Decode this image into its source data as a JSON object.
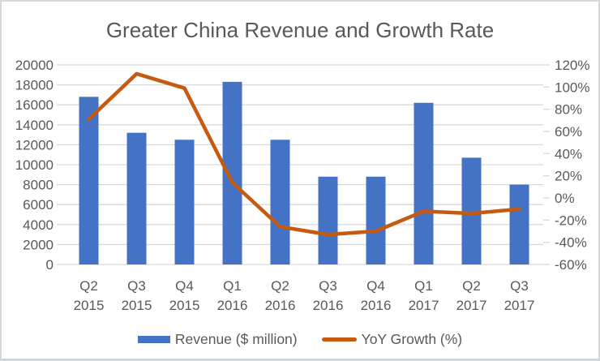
{
  "title": "Greater China Revenue and Growth Rate",
  "legend": {
    "revenue": {
      "label": "Revenue ($ million)",
      "color": "#4472C4"
    },
    "growth": {
      "label": "YoY Growth (%)",
      "color": "#C55A11"
    }
  },
  "chart_data": {
    "type": "bar",
    "combo": "bar + line, dual axis",
    "title": "Greater China Revenue and Growth Rate",
    "categories": [
      "Q2 2015",
      "Q3 2015",
      "Q4 2015",
      "Q1 2016",
      "Q2 2016",
      "Q3 2016",
      "Q4 2016",
      "Q1 2017",
      "Q2 2017",
      "Q3 2017"
    ],
    "series": [
      {
        "name": "Revenue ($ million)",
        "type": "bar",
        "axis": "left",
        "color": "#4472C4",
        "values": [
          16800,
          13200,
          12500,
          18300,
          12500,
          8800,
          8800,
          16200,
          10700,
          8000
        ]
      },
      {
        "name": "YoY Growth (%)",
        "type": "line",
        "axis": "right",
        "color": "#C55A11",
        "values": [
          71,
          112,
          99,
          14,
          -26,
          -33,
          -30,
          -12,
          -14,
          -10
        ]
      }
    ],
    "left_axis": {
      "min": 0,
      "max": 20000,
      "step": 2000,
      "tick_format": "plain_number"
    },
    "right_axis": {
      "min": -60,
      "max": 120,
      "step": 20,
      "tick_format": "percent"
    },
    "grid": true,
    "legend_position": "bottom",
    "text_color": "#595959",
    "grid_color": "#D9D9D9"
  }
}
